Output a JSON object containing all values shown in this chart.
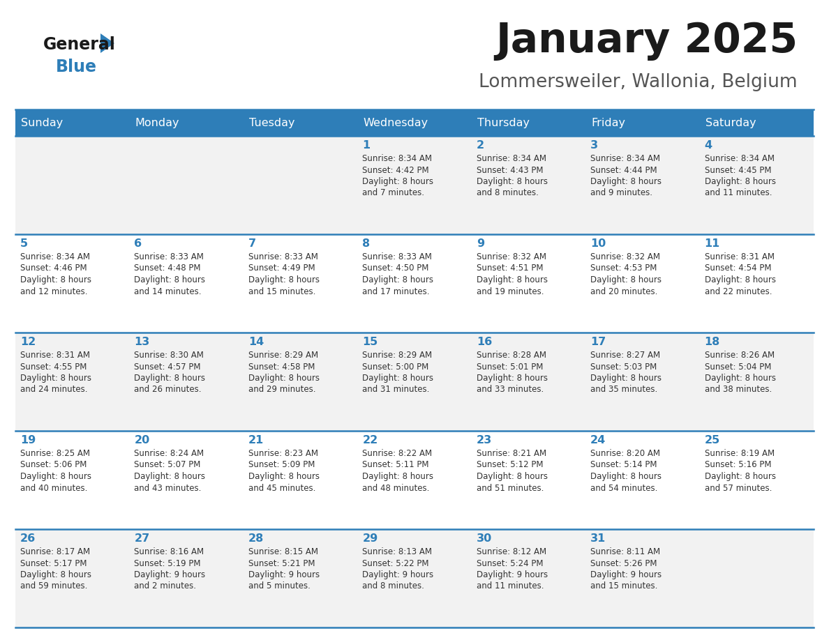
{
  "title": "January 2025",
  "subtitle": "Lommersweiler, Wallonia, Belgium",
  "header_color": "#2E7EB8",
  "header_text_color": "#FFFFFF",
  "row_bg_odd": "#F2F2F2",
  "row_bg_even": "#FFFFFF",
  "day_number_color": "#2E7EB8",
  "text_color": "#333333",
  "border_color": "#2E7EB8",
  "days_of_week": [
    "Sunday",
    "Monday",
    "Tuesday",
    "Wednesday",
    "Thursday",
    "Friday",
    "Saturday"
  ],
  "weeks": [
    [
      {
        "day": null,
        "data": null
      },
      {
        "day": null,
        "data": null
      },
      {
        "day": null,
        "data": null
      },
      {
        "day": 1,
        "data": {
          "sunrise": "8:34 AM",
          "sunset": "4:42 PM",
          "daylight": "8 hours and 7 minutes"
        }
      },
      {
        "day": 2,
        "data": {
          "sunrise": "8:34 AM",
          "sunset": "4:43 PM",
          "daylight": "8 hours and 8 minutes"
        }
      },
      {
        "day": 3,
        "data": {
          "sunrise": "8:34 AM",
          "sunset": "4:44 PM",
          "daylight": "8 hours and 9 minutes"
        }
      },
      {
        "day": 4,
        "data": {
          "sunrise": "8:34 AM",
          "sunset": "4:45 PM",
          "daylight": "8 hours and 11 minutes"
        }
      }
    ],
    [
      {
        "day": 5,
        "data": {
          "sunrise": "8:34 AM",
          "sunset": "4:46 PM",
          "daylight": "8 hours and 12 minutes"
        }
      },
      {
        "day": 6,
        "data": {
          "sunrise": "8:33 AM",
          "sunset": "4:48 PM",
          "daylight": "8 hours and 14 minutes"
        }
      },
      {
        "day": 7,
        "data": {
          "sunrise": "8:33 AM",
          "sunset": "4:49 PM",
          "daylight": "8 hours and 15 minutes"
        }
      },
      {
        "day": 8,
        "data": {
          "sunrise": "8:33 AM",
          "sunset": "4:50 PM",
          "daylight": "8 hours and 17 minutes"
        }
      },
      {
        "day": 9,
        "data": {
          "sunrise": "8:32 AM",
          "sunset": "4:51 PM",
          "daylight": "8 hours and 19 minutes"
        }
      },
      {
        "day": 10,
        "data": {
          "sunrise": "8:32 AM",
          "sunset": "4:53 PM",
          "daylight": "8 hours and 20 minutes"
        }
      },
      {
        "day": 11,
        "data": {
          "sunrise": "8:31 AM",
          "sunset": "4:54 PM",
          "daylight": "8 hours and 22 minutes"
        }
      }
    ],
    [
      {
        "day": 12,
        "data": {
          "sunrise": "8:31 AM",
          "sunset": "4:55 PM",
          "daylight": "8 hours and 24 minutes"
        }
      },
      {
        "day": 13,
        "data": {
          "sunrise": "8:30 AM",
          "sunset": "4:57 PM",
          "daylight": "8 hours and 26 minutes"
        }
      },
      {
        "day": 14,
        "data": {
          "sunrise": "8:29 AM",
          "sunset": "4:58 PM",
          "daylight": "8 hours and 29 minutes"
        }
      },
      {
        "day": 15,
        "data": {
          "sunrise": "8:29 AM",
          "sunset": "5:00 PM",
          "daylight": "8 hours and 31 minutes"
        }
      },
      {
        "day": 16,
        "data": {
          "sunrise": "8:28 AM",
          "sunset": "5:01 PM",
          "daylight": "8 hours and 33 minutes"
        }
      },
      {
        "day": 17,
        "data": {
          "sunrise": "8:27 AM",
          "sunset": "5:03 PM",
          "daylight": "8 hours and 35 minutes"
        }
      },
      {
        "day": 18,
        "data": {
          "sunrise": "8:26 AM",
          "sunset": "5:04 PM",
          "daylight": "8 hours and 38 minutes"
        }
      }
    ],
    [
      {
        "day": 19,
        "data": {
          "sunrise": "8:25 AM",
          "sunset": "5:06 PM",
          "daylight": "8 hours and 40 minutes"
        }
      },
      {
        "day": 20,
        "data": {
          "sunrise": "8:24 AM",
          "sunset": "5:07 PM",
          "daylight": "8 hours and 43 minutes"
        }
      },
      {
        "day": 21,
        "data": {
          "sunrise": "8:23 AM",
          "sunset": "5:09 PM",
          "daylight": "8 hours and 45 minutes"
        }
      },
      {
        "day": 22,
        "data": {
          "sunrise": "8:22 AM",
          "sunset": "5:11 PM",
          "daylight": "8 hours and 48 minutes"
        }
      },
      {
        "day": 23,
        "data": {
          "sunrise": "8:21 AM",
          "sunset": "5:12 PM",
          "daylight": "8 hours and 51 minutes"
        }
      },
      {
        "day": 24,
        "data": {
          "sunrise": "8:20 AM",
          "sunset": "5:14 PM",
          "daylight": "8 hours and 54 minutes"
        }
      },
      {
        "day": 25,
        "data": {
          "sunrise": "8:19 AM",
          "sunset": "5:16 PM",
          "daylight": "8 hours and 57 minutes"
        }
      }
    ],
    [
      {
        "day": 26,
        "data": {
          "sunrise": "8:17 AM",
          "sunset": "5:17 PM",
          "daylight": "8 hours and 59 minutes"
        }
      },
      {
        "day": 27,
        "data": {
          "sunrise": "8:16 AM",
          "sunset": "5:19 PM",
          "daylight": "9 hours and 2 minutes"
        }
      },
      {
        "day": 28,
        "data": {
          "sunrise": "8:15 AM",
          "sunset": "5:21 PM",
          "daylight": "9 hours and 5 minutes"
        }
      },
      {
        "day": 29,
        "data": {
          "sunrise": "8:13 AM",
          "sunset": "5:22 PM",
          "daylight": "9 hours and 8 minutes"
        }
      },
      {
        "day": 30,
        "data": {
          "sunrise": "8:12 AM",
          "sunset": "5:24 PM",
          "daylight": "9 hours and 11 minutes"
        }
      },
      {
        "day": 31,
        "data": {
          "sunrise": "8:11 AM",
          "sunset": "5:26 PM",
          "daylight": "9 hours and 15 minutes"
        }
      },
      {
        "day": null,
        "data": null
      }
    ]
  ]
}
